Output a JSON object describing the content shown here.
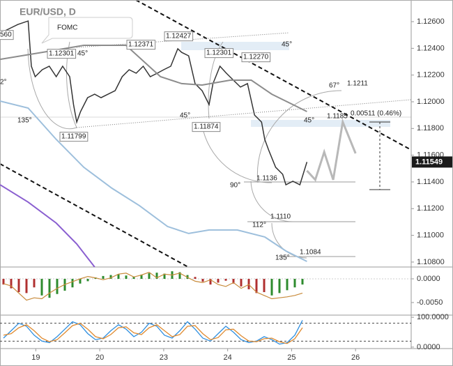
{
  "chart_data": [
    {
      "type": "line",
      "xlim": [
        -0.56,
        5.87
      ],
      "xticks": [
        {
          "value": 0,
          "label": "19"
        },
        {
          "value": 1,
          "label": "20"
        },
        {
          "value": 2,
          "label": "23"
        },
        {
          "value": 3,
          "label": "24"
        },
        {
          "value": 4,
          "label": "25"
        },
        {
          "value": 5,
          "label": "26"
        }
      ],
      "ylim": [
        1.10763,
        1.12762
      ],
      "yticks": [
        {
          "value": 1.126,
          "label": "1.12600"
        },
        {
          "value": 1.124,
          "label": "1.12400"
        },
        {
          "value": 1.122,
          "label": "1.12200"
        },
        {
          "value": 1.12,
          "label": "1.12000"
        },
        {
          "value": 1.118,
          "label": "1.11800"
        },
        {
          "value": 1.116,
          "label": "1.11600"
        },
        {
          "value": 1.114,
          "label": "1.11400"
        },
        {
          "value": 1.112,
          "label": "1.11200"
        },
        {
          "value": 1.11,
          "label": "1.11000"
        },
        {
          "value": 1.108,
          "label": "1.10800"
        }
      ],
      "last_price": 1.11549,
      "series": [
        {
          "color": "#333333",
          "x": [
            -0.5,
            -0.39,
            -0.28,
            -0.12,
            -0.07,
            -0.01,
            0.1,
            0.21,
            0.32,
            0.42,
            0.53,
            0.59,
            0.64,
            0.7,
            0.81,
            0.92,
            1.02,
            1.13,
            1.24,
            1.35,
            1.46,
            1.57,
            1.68,
            1.79,
            1.9,
            2.0,
            2.11,
            2.22,
            2.28,
            2.39,
            2.49,
            2.6,
            2.71,
            2.77,
            2.88,
            2.98,
            3.09,
            3.2,
            3.31,
            3.42,
            3.53,
            3.58,
            3.64,
            3.75,
            3.86,
            3.91,
            4.02,
            4.13,
            4.24
          ],
          "values": [
            1.12527,
            1.12553,
            1.12579,
            1.12605,
            1.12266,
            1.12188,
            1.1224,
            1.12266,
            1.12188,
            1.12266,
            1.12188,
            1.11979,
            1.11848,
            1.11927,
            1.12031,
            1.12057,
            1.12031,
            1.12057,
            1.12083,
            1.12188,
            1.1224,
            1.12214,
            1.12266,
            1.12188,
            1.12214,
            1.1224,
            1.12266,
            1.12397,
            1.1237,
            1.12344,
            1.12136,
            1.12083,
            1.11979,
            1.12136,
            1.12266,
            1.12214,
            1.12162,
            1.1211,
            1.12136,
            1.11901,
            1.11848,
            1.11718,
            1.1164,
            1.1151,
            1.11457,
            1.11379,
            1.11405,
            1.11379,
            1.11549
          ]
        },
        {
          "color": "#8c8c8c",
          "x": [
            -0.56,
            0.1,
            0.75,
            1.41,
            1.95,
            2.28,
            2.6,
            3.04,
            3.37,
            3.69,
            4.02,
            4.24
          ],
          "values": [
            1.12318,
            1.1237,
            1.12423,
            1.12423,
            1.12188,
            1.12136,
            1.12125,
            1.12162,
            1.12162,
            1.12057,
            1.11979,
            1.11927
          ]
        },
        {
          "color": "#9dbfdc",
          "x": [
            -0.56,
            -0.12,
            0.32,
            0.75,
            1.19,
            1.62,
            2.06,
            2.39,
            2.71,
            3.15,
            3.58,
            3.91,
            4.24
          ],
          "values": [
            1.12005,
            1.11953,
            1.11718,
            1.1151,
            1.11353,
            1.11223,
            1.11066,
            1.11014,
            1.1104,
            1.1104,
            1.10988,
            1.10883,
            1.10805
          ]
        },
        {
          "color": "#8a5fd0",
          "x": [
            -0.56,
            -0.12,
            0.32,
            0.64,
            0.92
          ],
          "values": [
            1.11379,
            1.11249,
            1.11092,
            1.10936,
            1.10763
          ]
        },
        {
          "color": "#b8b8b8",
          "x": [
            4.24,
            4.37,
            4.51,
            4.65,
            4.8,
            5.0
          ],
          "values": [
            1.11484,
            1.11416,
            1.11624,
            1.11416,
            1.11849,
            1.11614
          ]
        }
      ],
      "annotations": [
        "EUR/USD, D",
        "FOMC",
        "560",
        "1.12301",
        "45°",
        "1.12371",
        "1.12427",
        "1.12301",
        "1.12270",
        "45°",
        "2°",
        "135°",
        "1.11799",
        "45°",
        "1.11874",
        "45°",
        "67°",
        "1.1211",
        "1.1185",
        "0.00511 (0.46%)",
        "90°",
        "1.1136",
        "112°",
        "1.1110",
        "135°",
        "1.1084"
      ]
    },
    {
      "type": "bar",
      "ylim": [
        -0.00765,
        0.00235
      ],
      "yticks": [
        {
          "value": 0,
          "label": "0.0000"
        },
        {
          "value": -0.005,
          "label": "-0.0050"
        }
      ],
      "values": [
        -0.0012,
        -0.002,
        -0.0028,
        -0.003,
        -0.0018,
        -0.0035,
        -0.004,
        -0.0032,
        -0.0025,
        -0.0018,
        -0.001,
        -0.0005,
        0.0003,
        0.0006,
        0.0008,
        0.001,
        0.0007,
        0.0005,
        0.0009,
        0.0012,
        0.0013,
        0.0011,
        0.0016,
        0.0014,
        0.0008,
        0.0004,
        -0.0006,
        -0.0012,
        -0.0008,
        -0.0004,
        -0.001,
        -0.0016,
        -0.0022,
        -0.003,
        -0.0028,
        -0.0035,
        -0.003,
        -0.0024,
        -0.0018,
        -0.0012
      ],
      "colors": [
        "#b03030",
        "#b03030",
        "#b03030",
        "#b03030",
        "#b03030",
        "#2e8b2e",
        "#2e8b2e",
        "#2e8b2e",
        "#2e8b2e",
        "#2e8b2e",
        "#2e8b2e",
        "#2e8b2e",
        "#2e8b2e",
        "#2e8b2e",
        "#2e8b2e",
        "#2e8b2e",
        "#2e8b2e",
        "#2e8b2e",
        "#2e8b2e",
        "#2e8b2e",
        "#2e8b2e",
        "#2e8b2e",
        "#2e8b2e",
        "#2e8b2e",
        "#2e8b2e",
        "#b03030",
        "#b03030",
        "#b03030",
        "#b03030",
        "#b03030",
        "#b03030",
        "#b03030",
        "#b03030",
        "#b03030",
        "#b03030",
        "#2e8b2e",
        "#2e8b2e",
        "#2e8b2e",
        "#2e8b2e",
        "#2e8b2e"
      ],
      "line": {
        "color": "#c88a3a",
        "values": [
          -0.001,
          -0.0015,
          -0.003,
          -0.0045,
          -0.004,
          -0.0042,
          -0.003,
          -0.002,
          -0.0012,
          -0.0006,
          0.0,
          0.0005,
          0.0002,
          -0.0002,
          0.0002,
          0.001,
          0.0012,
          0.0004,
          0.0008,
          0.0014,
          0.0002,
          0.001,
          0.0008,
          0.0012,
          0.0003,
          -0.0005,
          -0.0008,
          -0.0002,
          -0.0012,
          -0.0016,
          -0.0008,
          -0.002,
          -0.0012,
          -0.0028,
          -0.0035,
          -0.0042,
          -0.004,
          -0.0038,
          -0.0035,
          -0.003
        ]
      }
    },
    {
      "type": "stoch",
      "ylim": [
        -5,
        105
      ],
      "yticks": [
        {
          "value": 100,
          "label": "100.0000"
        },
        {
          "value": 0,
          "label": "0.0000"
        }
      ],
      "levels": [
        80,
        20
      ],
      "series": [
        {
          "color": "#2f8fe0",
          "values": [
            30,
            55,
            80,
            70,
            40,
            20,
            15,
            35,
            60,
            85,
            75,
            45,
            25,
            30,
            55,
            75,
            60,
            35,
            50,
            80,
            70,
            40,
            30,
            55,
            85,
            60,
            30,
            20,
            45,
            70,
            50,
            25,
            15,
            20,
            35,
            25,
            10,
            15,
            40,
            90
          ]
        },
        {
          "color": "#e08a2f",
          "values": [
            40,
            45,
            65,
            75,
            55,
            30,
            18,
            25,
            48,
            72,
            80,
            60,
            35,
            28,
            42,
            65,
            68,
            48,
            42,
            65,
            75,
            55,
            35,
            42,
            70,
            72,
            45,
            25,
            32,
            58,
            60,
            38,
            20,
            18,
            28,
            30,
            18,
            12,
            28,
            65
          ]
        }
      ]
    }
  ]
}
